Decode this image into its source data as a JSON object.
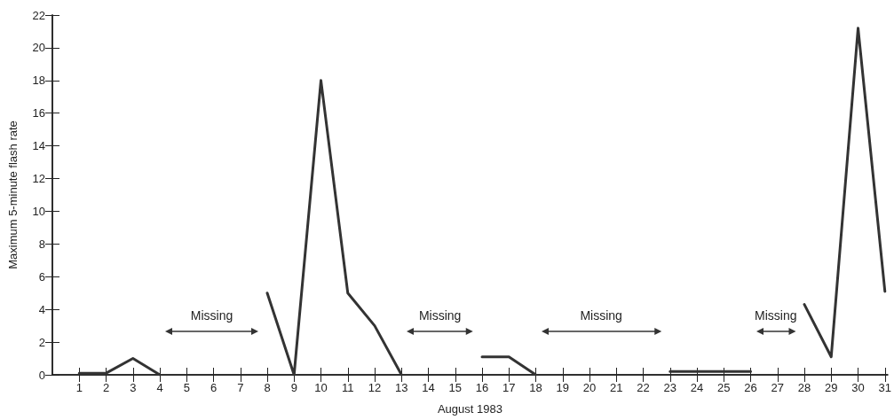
{
  "chart_data": {
    "type": "line",
    "xlabel": "August 1983",
    "ylabel": "Maximum 5-minute flash rate",
    "x": [
      1,
      2,
      3,
      4,
      5,
      6,
      7,
      8,
      9,
      10,
      11,
      12,
      13,
      14,
      15,
      16,
      17,
      18,
      19,
      20,
      21,
      22,
      23,
      24,
      25,
      26,
      27,
      28,
      29,
      30,
      31
    ],
    "series": [
      {
        "color": "#333333",
        "values": [
          0.1,
          0.1,
          1,
          0,
          null,
          null,
          null,
          5,
          0,
          18,
          5,
          3,
          0,
          null,
          null,
          1.1,
          1.1,
          0,
          null,
          null,
          null,
          null,
          0.2,
          0.2,
          0.2,
          0.2,
          null,
          4.3,
          1.1,
          21.2,
          5.1
        ]
      }
    ],
    "xlim": [
      0,
      31.1
    ],
    "xticks": [
      1,
      2,
      3,
      4,
      5,
      6,
      7,
      8,
      9,
      10,
      11,
      12,
      13,
      14,
      15,
      16,
      17,
      18,
      19,
      20,
      21,
      22,
      23,
      24,
      25,
      26,
      27,
      28,
      29,
      30,
      31
    ],
    "ylim": [
      0,
      22
    ],
    "yticks": [
      0,
      2,
      4,
      6,
      8,
      10,
      12,
      14,
      16,
      18,
      20,
      22
    ],
    "annotations": [
      "Missing",
      "Missing",
      "Missing",
      "Missing"
    ],
    "grid": false,
    "marker": "none",
    "line_style": "solid"
  }
}
